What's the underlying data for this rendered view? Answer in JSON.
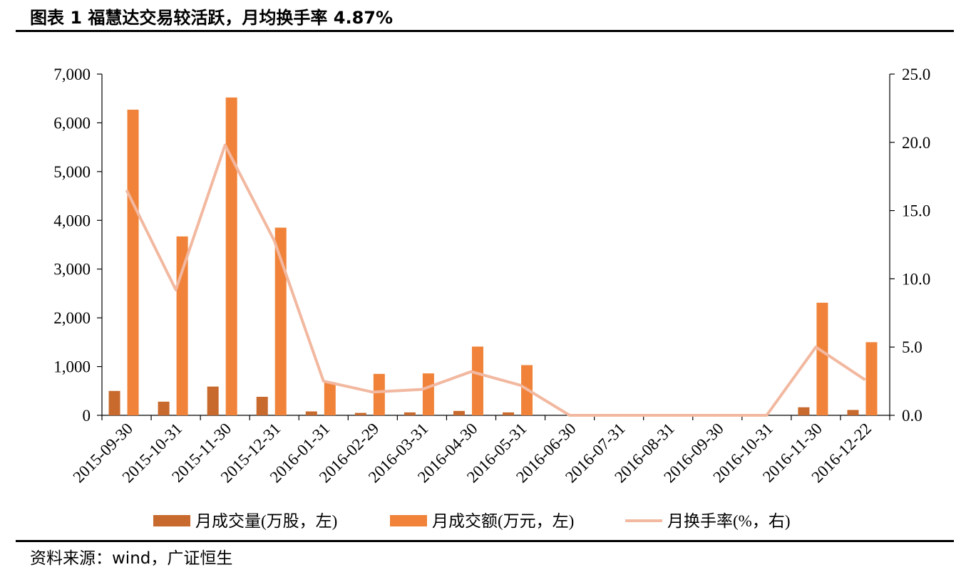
{
  "header": {
    "title": "图表 1 福慧达交易较活跃，月均换手率 4.87%"
  },
  "footer": {
    "source": "资料来源：wind，广证恒生"
  },
  "chart_data": {
    "type": "bar",
    "categories": [
      "2015-09-30",
      "2015-10-31",
      "2015-11-30",
      "2015-12-31",
      "2016-01-31",
      "2016-02-29",
      "2016-03-31",
      "2016-04-30",
      "2016-05-31",
      "2016-06-30",
      "2016-07-31",
      "2016-08-31",
      "2016-09-30",
      "2016-10-31",
      "2016-11-30",
      "2016-12-22"
    ],
    "left_axis": {
      "ylim": [
        0,
        7000
      ],
      "ticks": [
        "0",
        "1,000",
        "2,000",
        "3,000",
        "4,000",
        "5,000",
        "6,000",
        "7,000"
      ]
    },
    "right_axis": {
      "ylim": [
        0,
        25
      ],
      "ticks": [
        "0.0",
        "5.0",
        "10.0",
        "15.0",
        "20.0",
        "25.0"
      ]
    },
    "series": [
      {
        "name": "月成交量(万股，左)",
        "type": "bar",
        "axis": "left",
        "color": "#C8692D",
        "values": [
          500,
          280,
          590,
          380,
          80,
          50,
          60,
          90,
          60,
          0,
          0,
          0,
          0,
          0,
          165,
          110
        ]
      },
      {
        "name": "月成交额(万元，左)",
        "type": "bar",
        "axis": "left",
        "color": "#F08339",
        "values": [
          6270,
          3670,
          6520,
          3850,
          680,
          850,
          860,
          1410,
          1030,
          0,
          0,
          0,
          0,
          0,
          2310,
          1500
        ]
      },
      {
        "name": "月换手率(%，右)",
        "type": "line",
        "axis": "right",
        "color": "#F2B8A0",
        "values": [
          16.5,
          9.2,
          19.8,
          12.8,
          2.5,
          1.7,
          1.9,
          3.2,
          2.2,
          0,
          0,
          0,
          0,
          0,
          5.0,
          2.6
        ]
      }
    ],
    "legend_position": "bottom",
    "grid": false
  }
}
